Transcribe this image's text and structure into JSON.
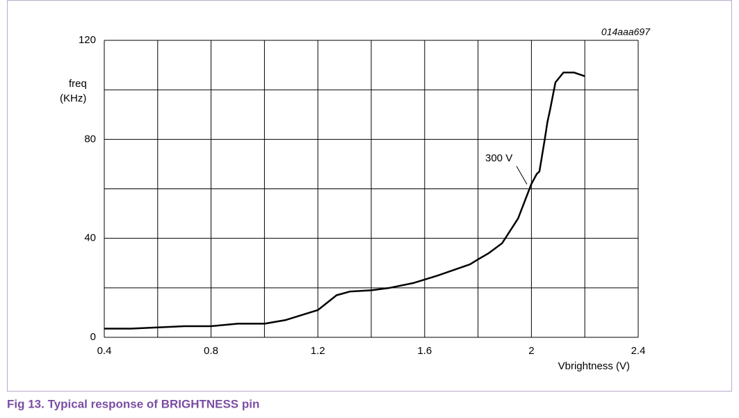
{
  "chart_data": {
    "type": "line",
    "code": "014aaa697",
    "y_label": [
      "freq",
      "(KHz)"
    ],
    "x_label": "Vbrightness (V)",
    "annotation": "300 V",
    "caption": "Fig 13. Typical response of BRIGHTNESS pin",
    "x": [
      0.4,
      0.5,
      0.6,
      0.7,
      0.8,
      0.9,
      1.0,
      1.08,
      1.2,
      1.27,
      1.32,
      1.4,
      1.47,
      1.56,
      1.65,
      1.77,
      1.8,
      1.84,
      1.89,
      1.95,
      2.0,
      2.02,
      2.03,
      2.05,
      2.06,
      2.07,
      2.09,
      2.12,
      2.16,
      2.2
    ],
    "values": [
      3.5,
      3.5,
      4,
      4.5,
      4.5,
      5.5,
      5.5,
      7,
      11,
      17,
      18.5,
      19,
      20,
      22,
      25,
      29.5,
      31.5,
      34,
      38,
      48,
      62,
      66,
      67,
      80,
      87,
      92,
      103,
      107,
      107,
      105.5
    ],
    "color": "#000000",
    "xlim": [
      0.4,
      2.4
    ],
    "ylim": [
      0,
      120
    ],
    "xticks": [
      0.4,
      0.8,
      1.2,
      1.6,
      2,
      2.4
    ],
    "yticks": [
      0,
      40,
      80,
      120
    ],
    "xgrid": [
      0.4,
      0.6,
      0.8,
      1.0,
      1.2,
      1.4,
      1.6,
      1.8,
      2.0,
      2.2,
      2.4
    ],
    "ygrid": [
      0,
      20,
      40,
      60,
      80,
      100,
      120
    ],
    "grid": true
  }
}
